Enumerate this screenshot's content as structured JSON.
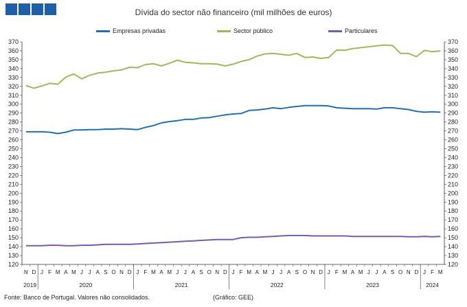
{
  "chart_data": {
    "type": "line",
    "title": "Dívida do sector não financeiro (mil milhões de euros)",
    "ylim": [
      120,
      370
    ],
    "ytick_step": 10,
    "grid": false,
    "legend_position": "top",
    "x_months": [
      "N",
      "D",
      "J",
      "F",
      "M",
      "A",
      "M",
      "J",
      "J",
      "A",
      "S",
      "O",
      "N",
      "D",
      "J",
      "F",
      "M",
      "A",
      "M",
      "J",
      "J",
      "A",
      "S",
      "O",
      "N",
      "D",
      "J",
      "F",
      "M",
      "A",
      "M",
      "J",
      "J",
      "A",
      "S",
      "O",
      "N",
      "D",
      "J",
      "F",
      "M",
      "A",
      "M",
      "J",
      "J",
      "A",
      "S",
      "O",
      "N",
      "D",
      "J",
      "F",
      "M"
    ],
    "x_years": [
      {
        "label": "2019",
        "start": 0,
        "count": 2
      },
      {
        "label": "2020",
        "start": 2,
        "count": 12
      },
      {
        "label": "2021",
        "start": 14,
        "count": 12
      },
      {
        "label": "2022",
        "start": 26,
        "count": 12
      },
      {
        "label": "2023",
        "start": 38,
        "count": 12
      },
      {
        "label": "2024",
        "start": 50,
        "count": 3
      }
    ],
    "series": [
      {
        "name": "Empresas privadas",
        "color": "#1f6fb5",
        "values": [
          269,
          269,
          269,
          268.5,
          267,
          268.5,
          271,
          271,
          271.5,
          271.5,
          272,
          272,
          272.5,
          272,
          271.5,
          274,
          276,
          279,
          280.5,
          281.5,
          283,
          283,
          284.5,
          285,
          286.5,
          288,
          289,
          289.5,
          293,
          293.5,
          294.5,
          296,
          295,
          296.5,
          297.5,
          298.5,
          298.5,
          298.5,
          298,
          296,
          295.5,
          295,
          295,
          295,
          294.5,
          296,
          296,
          295,
          294,
          292,
          291,
          291.5,
          291
        ]
      },
      {
        "name": "Sector público",
        "color": "#9bbb59",
        "values": [
          321,
          318,
          320.5,
          323.5,
          322.5,
          330.5,
          334,
          328.5,
          332.5,
          335,
          336,
          337.5,
          338.5,
          341.5,
          341,
          344.5,
          345.5,
          343,
          346,
          349.5,
          347,
          346.5,
          345.5,
          345.5,
          345,
          343,
          345,
          348,
          350,
          354,
          356.5,
          357,
          356,
          355,
          357,
          352.5,
          353,
          351.5,
          352.5,
          361,
          360.5,
          362.5,
          363.5,
          364.5,
          365.5,
          366.5,
          366,
          357,
          357,
          353.5,
          360.5,
          359,
          360
        ]
      },
      {
        "name": "Particulares",
        "color": "#7b5aa6",
        "values": [
          141,
          141,
          141,
          141.5,
          141.5,
          141,
          141,
          141.5,
          141.5,
          142,
          142.5,
          142.5,
          142.5,
          142.5,
          143,
          143.5,
          144,
          144.5,
          145,
          145.5,
          146,
          146.5,
          147,
          147.5,
          148,
          148,
          148,
          150,
          150.5,
          150.5,
          151,
          151.5,
          152,
          152.5,
          152.5,
          152.5,
          152,
          152,
          152,
          152,
          152,
          151.5,
          151.5,
          151.5,
          151.5,
          151.5,
          151.5,
          151.5,
          151,
          151,
          151.5,
          151,
          151.5
        ]
      }
    ]
  },
  "footer": {
    "source": "Fonte: Banco de Portugal. Valores não consolidados.",
    "credit": "(Gráfico: GEE)"
  }
}
